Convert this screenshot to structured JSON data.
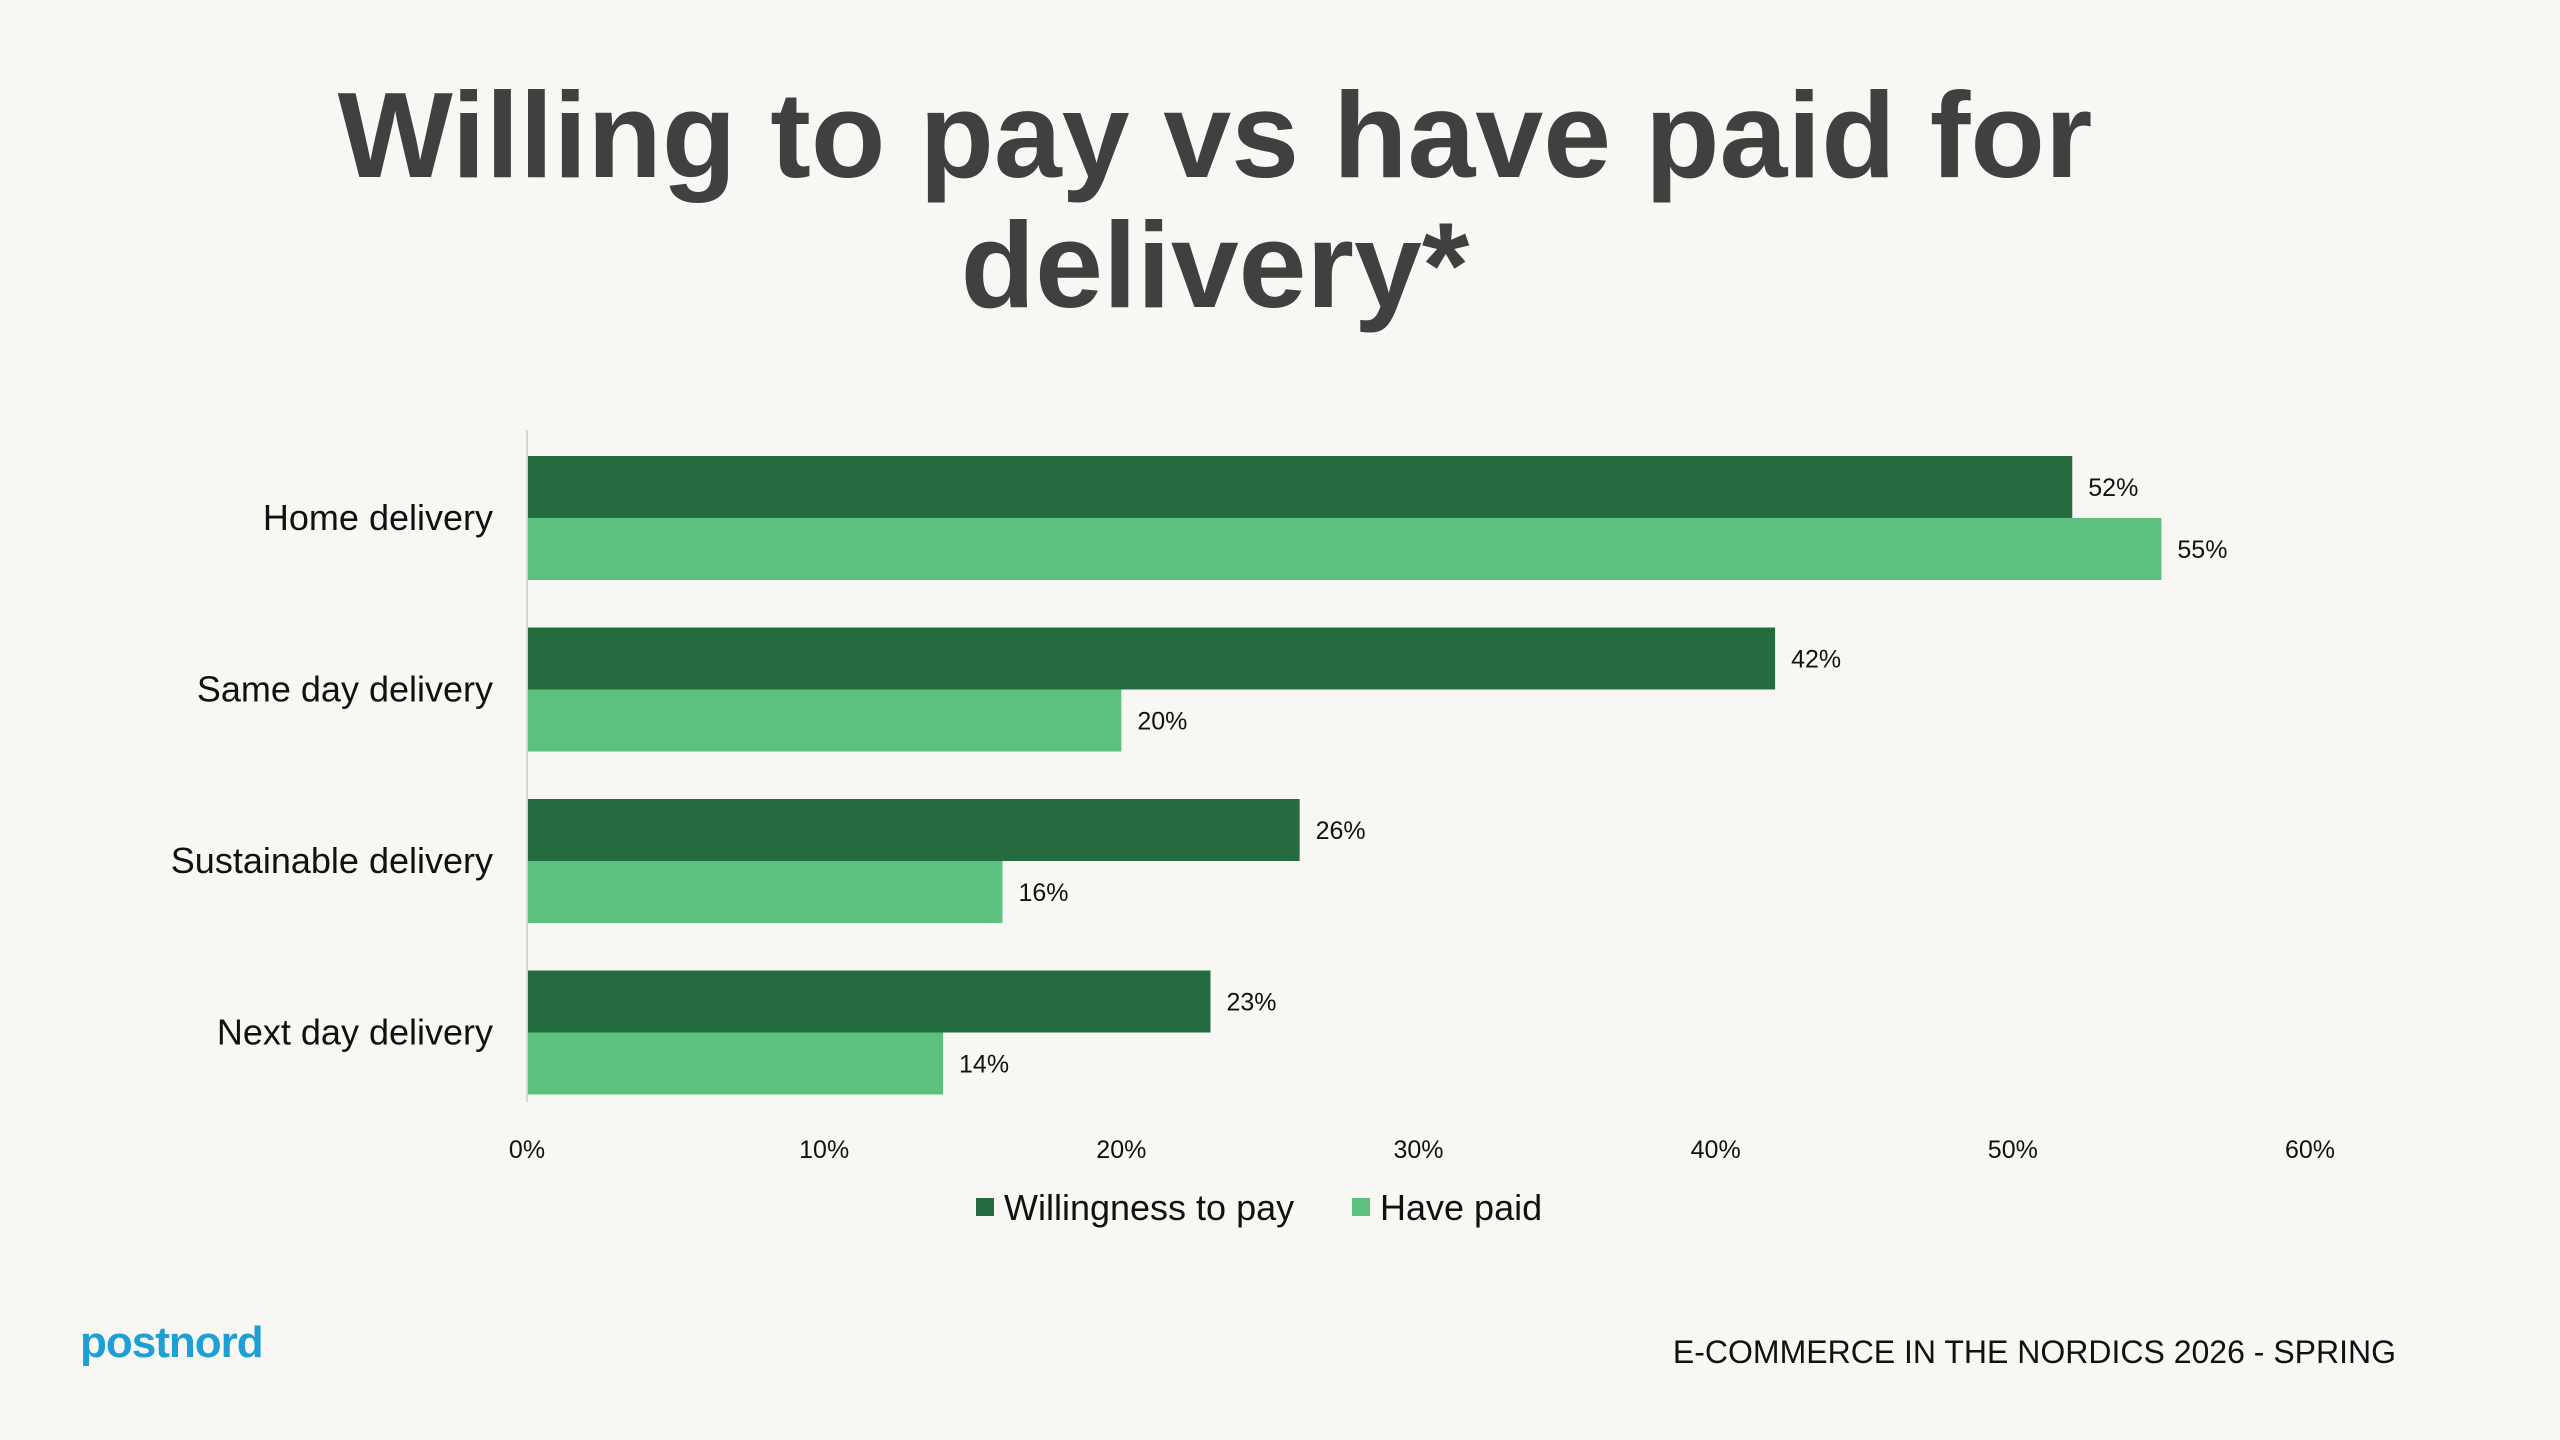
{
  "title": "Willing to pay vs have paid for delivery*",
  "footer": {
    "logo_text": "postnord",
    "source": "E-COMMERCE IN THE NORDICS 2026 - SPRING"
  },
  "colors": {
    "background": "#f8f7f4",
    "willingness": "#256b40",
    "have_paid": "#5cc17f",
    "logo": "#1ea0d6",
    "title": "#404040"
  },
  "chart_data": {
    "type": "bar",
    "orientation": "horizontal",
    "categories": [
      "Home delivery",
      "Same day delivery",
      "Sustainable delivery",
      "Next day delivery"
    ],
    "series": [
      {
        "name": "Willingness to pay",
        "values": [
          52,
          42,
          26,
          23
        ],
        "labels": [
          "52%",
          "42%",
          "26%",
          "23%"
        ]
      },
      {
        "name": "Have paid",
        "values": [
          55,
          20,
          16,
          14
        ],
        "labels": [
          "55%",
          "20%",
          "16%",
          "14%"
        ]
      }
    ],
    "xlim": [
      0,
      60
    ],
    "xticks": [
      0,
      10,
      20,
      30,
      40,
      50,
      60
    ],
    "xtick_labels": [
      "0%",
      "10%",
      "20%",
      "30%",
      "40%",
      "50%",
      "60%"
    ],
    "grid": false,
    "legend": "bottom"
  }
}
